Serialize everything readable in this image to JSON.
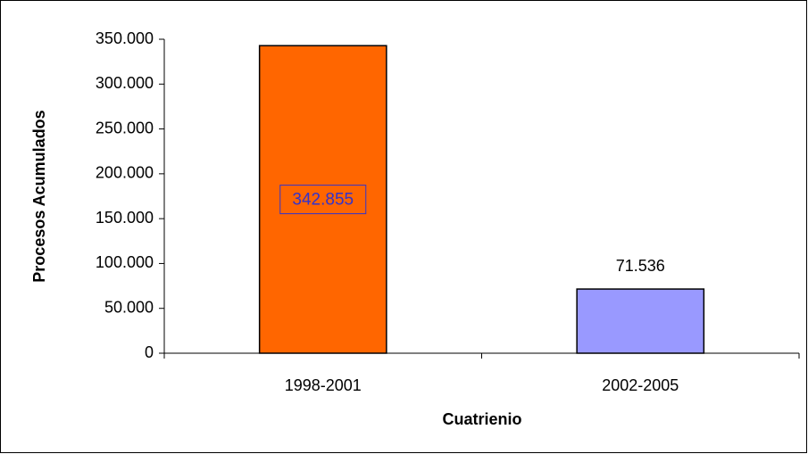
{
  "chart_data": {
    "type": "bar",
    "x_label": "Cuatrienio",
    "y_label": "Procesos Acumulados",
    "categories": [
      "1998-2001",
      "2002-2005"
    ],
    "values": [
      342855,
      71536
    ],
    "value_labels": [
      "342.855",
      "71.536"
    ],
    "colors": [
      "#ff6600",
      "#9999ff"
    ],
    "ylim": [
      0,
      350000
    ],
    "yticks": [
      0,
      {
        "value": 50000,
        "label": "50.000"
      },
      {
        "value": 100000,
        "label": "100.000"
      },
      {
        "value": 150000,
        "label": "150.000"
      },
      {
        "value": 200000,
        "label": "200.000"
      },
      {
        "value": 250000,
        "label": "250.000"
      },
      {
        "value": 300000,
        "label": "300.000"
      },
      {
        "value": 350000,
        "label": "350.000"
      }
    ],
    "grid": false
  }
}
